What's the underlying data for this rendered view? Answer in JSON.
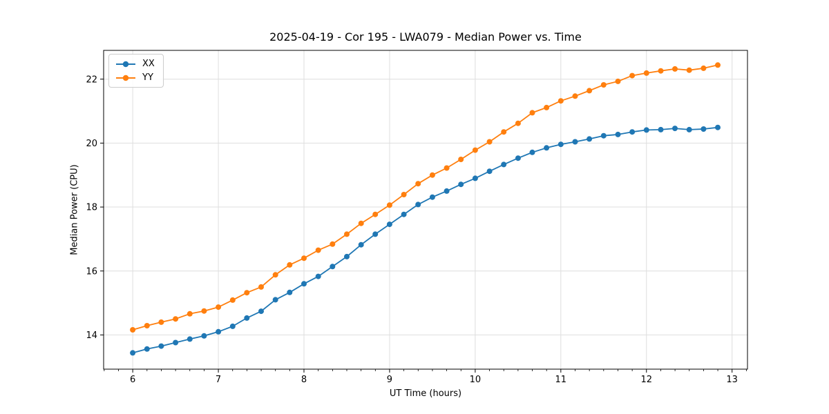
{
  "chart_data": {
    "type": "line",
    "title": "2025-04-19 - Cor 195 - LWA079 - Median Power vs. Time",
    "xlabel": "UT Time (hours)",
    "ylabel": "Median Power (CPU)",
    "xlim": [
      5.66,
      13.18
    ],
    "ylim": [
      12.93,
      22.9
    ],
    "x_ticks": [
      6,
      7,
      8,
      9,
      10,
      11,
      12,
      13
    ],
    "y_ticks": [
      14,
      16,
      18,
      20,
      22
    ],
    "x_minor_tick_step": 0.16667,
    "grid": true,
    "legend_position": "upper left",
    "marker": "o",
    "x": [
      6.0,
      6.167,
      6.333,
      6.5,
      6.667,
      6.833,
      7.0,
      7.167,
      7.333,
      7.5,
      7.667,
      7.833,
      8.0,
      8.167,
      8.333,
      8.5,
      8.667,
      8.833,
      9.0,
      9.167,
      9.333,
      9.5,
      9.667,
      9.833,
      10.0,
      10.167,
      10.333,
      10.5,
      10.667,
      10.833,
      11.0,
      11.167,
      11.333,
      11.5,
      11.667,
      11.833,
      12.0,
      12.167,
      12.333,
      12.5,
      12.667,
      12.833
    ],
    "series": [
      {
        "name": "XX",
        "color": "#1f77b4",
        "values": [
          13.44,
          13.56,
          13.65,
          13.76,
          13.87,
          13.97,
          14.1,
          14.27,
          14.53,
          14.74,
          15.1,
          15.33,
          15.6,
          15.83,
          16.14,
          16.45,
          16.82,
          17.15,
          17.46,
          17.77,
          18.08,
          18.31,
          18.5,
          18.71,
          18.9,
          19.12,
          19.33,
          19.53,
          19.71,
          19.85,
          19.96,
          20.04,
          20.13,
          20.23,
          20.27,
          20.35,
          20.41,
          20.42,
          20.46,
          20.42,
          20.44,
          20.49
        ]
      },
      {
        "name": "YY",
        "color": "#ff7f0e",
        "values": [
          14.16,
          14.29,
          14.4,
          14.5,
          14.66,
          14.75,
          14.87,
          15.09,
          15.32,
          15.5,
          15.88,
          16.19,
          16.4,
          16.65,
          16.84,
          17.15,
          17.49,
          17.77,
          18.06,
          18.39,
          18.73,
          19.0,
          19.22,
          19.49,
          19.78,
          20.04,
          20.35,
          20.62,
          20.95,
          21.11,
          21.32,
          21.47,
          21.64,
          21.82,
          21.93,
          22.11,
          22.19,
          22.26,
          22.32,
          22.28,
          22.34,
          22.44
        ]
      }
    ],
    "colors": {
      "grid": "#dedede",
      "spine": "#000000",
      "tick_label": "#000000",
      "background": "#ffffff"
    }
  }
}
